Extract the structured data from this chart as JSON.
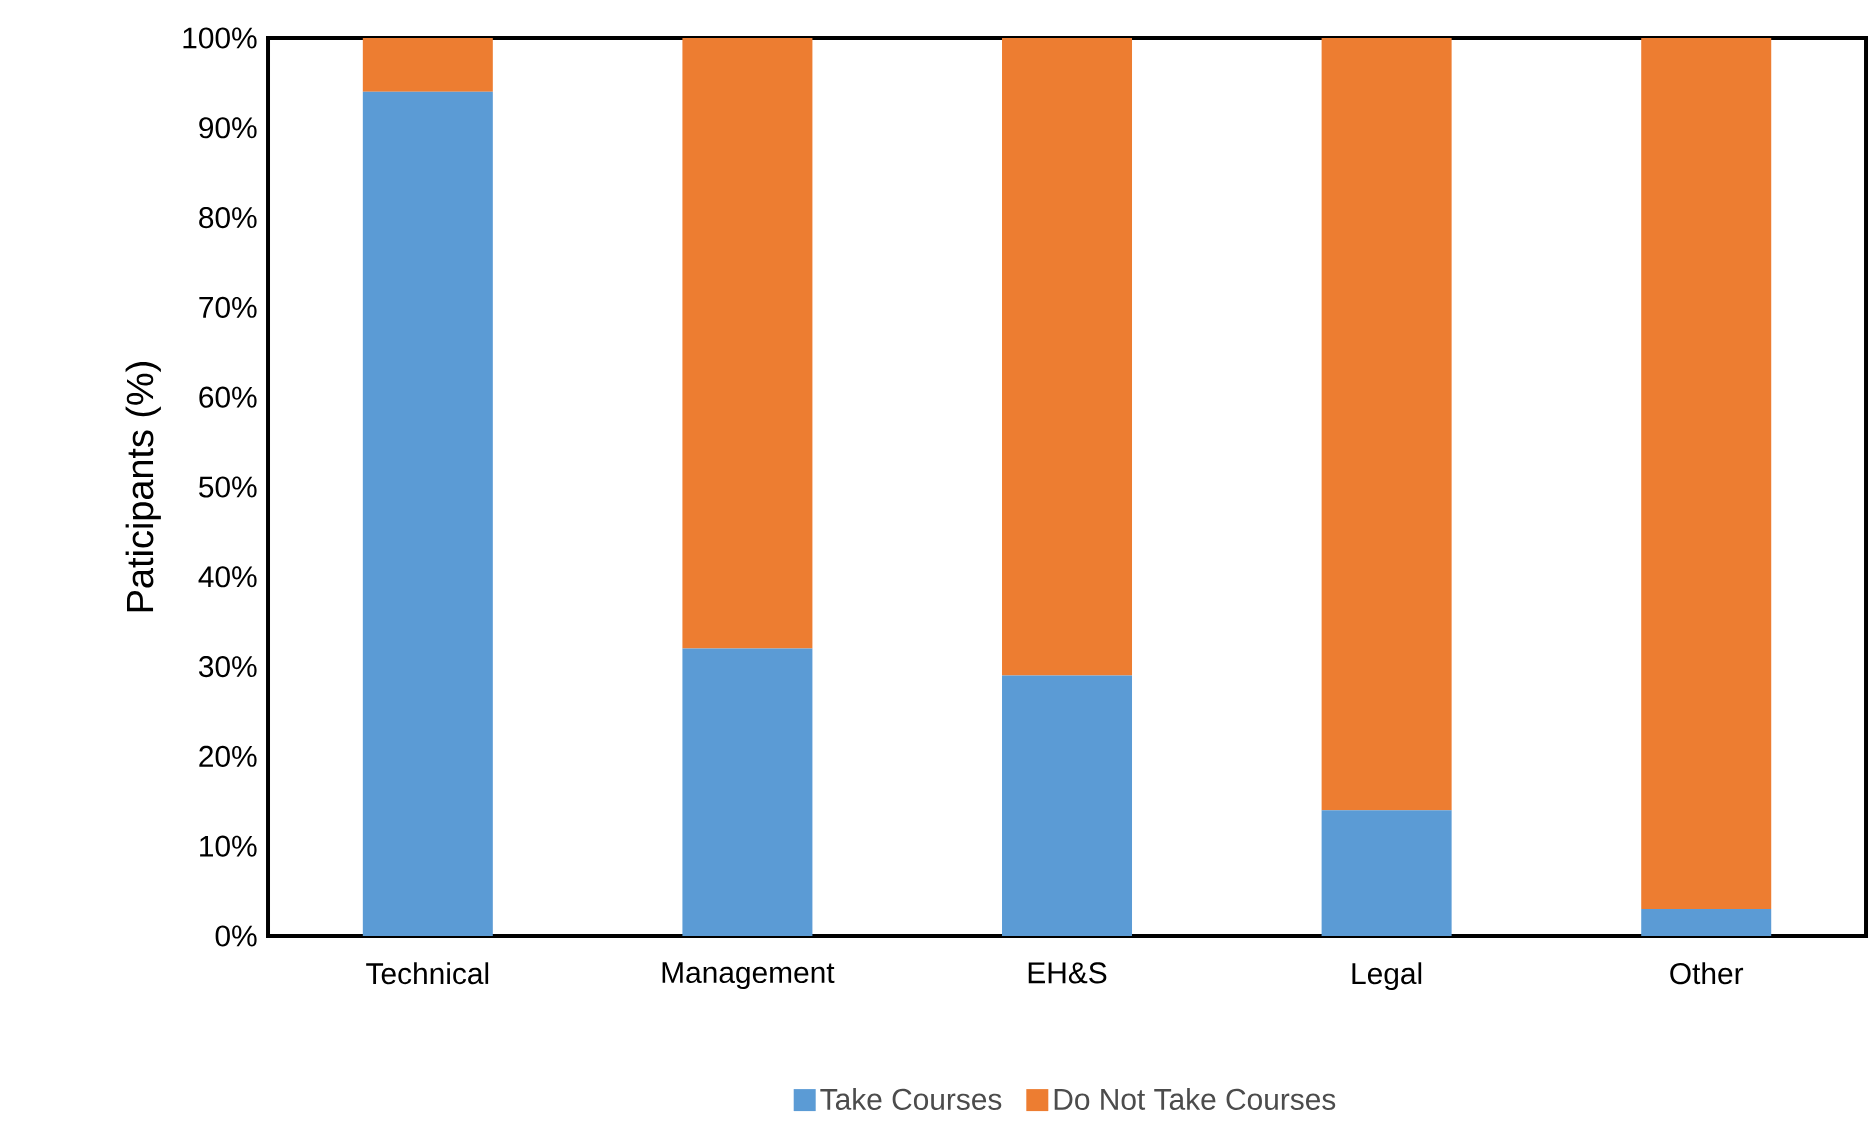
{
  "chart_data": {
    "type": "bar",
    "stacked": true,
    "ylabel": "Paticipants (%)",
    "categories": [
      "Technical",
      "Management",
      "EH&S",
      "Legal",
      "Other"
    ],
    "series": [
      {
        "name": "Take Courses",
        "color": "#5b9bd5",
        "values": [
          94,
          32,
          29,
          14,
          3
        ]
      },
      {
        "name": "Do Not Take Courses",
        "color": "#ed7d31",
        "values": [
          6,
          68,
          71,
          86,
          97
        ]
      }
    ],
    "ylim": [
      0,
      100
    ],
    "yticks": [
      {
        "value": 0,
        "label": "0%"
      },
      {
        "value": 10,
        "label": "10%"
      },
      {
        "value": 20,
        "label": "20%"
      },
      {
        "value": 30,
        "label": "30%"
      },
      {
        "value": 40,
        "label": "40%"
      },
      {
        "value": 50,
        "label": "50%"
      },
      {
        "value": 60,
        "label": "60%"
      },
      {
        "value": 70,
        "label": "70%"
      },
      {
        "value": 80,
        "label": "80%"
      },
      {
        "value": 90,
        "label": "90%"
      },
      {
        "value": 100,
        "label": "100%"
      }
    ],
    "grid": false,
    "legend": "bottom"
  }
}
